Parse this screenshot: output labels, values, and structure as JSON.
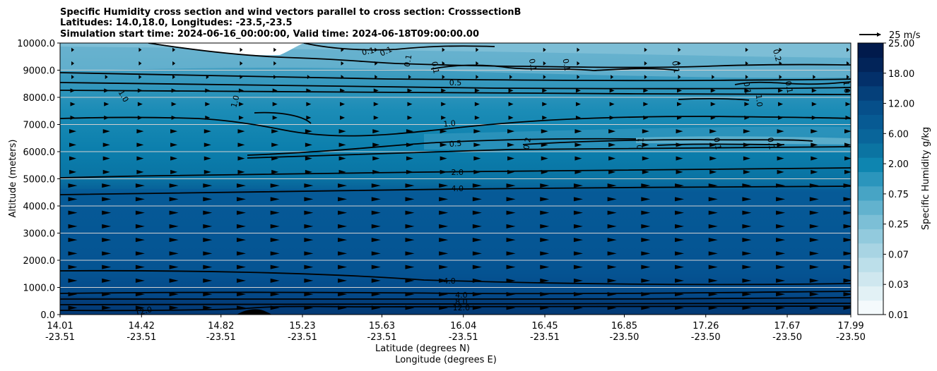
{
  "chart_data": {
    "type": "contour-cross-section",
    "title_lines": [
      "Specific Humidity cross section and wind vectors parallel to cross section: CrosssectionB",
      "Latitudes: 14.0,18.0, Longitudes: -23.5,-23.5",
      "Simulation start time: 2024-06-16_00:00:00, Valid time: 2024-06-18T09:00:00.00"
    ],
    "ylabel": "Altitude (meters)",
    "xlabel_lat": "Latitude (degrees N)",
    "xlabel_lon": "Longitude (degrees E)",
    "ylim": [
      0,
      10000
    ],
    "y_ticks": [
      "0.0",
      "1000.0",
      "2000.0",
      "3000.0",
      "4000.0",
      "5000.0",
      "6000.0",
      "7000.0",
      "8000.0",
      "9000.0",
      "10000.0"
    ],
    "y_tick_values": [
      0,
      1000,
      2000,
      3000,
      4000,
      5000,
      6000,
      7000,
      8000,
      9000,
      10000
    ],
    "x_range": [
      14.01,
      17.99
    ],
    "x_ticks": [
      {
        "lat": "14.01",
        "lon": "-23.51",
        "pos": 14.01
      },
      {
        "lat": "14.42",
        "lon": "-23.51",
        "pos": 14.42
      },
      {
        "lat": "14.82",
        "lon": "-23.51",
        "pos": 14.82
      },
      {
        "lat": "15.23",
        "lon": "-23.51",
        "pos": 15.23
      },
      {
        "lat": "15.63",
        "lon": "-23.51",
        "pos": 15.63
      },
      {
        "lat": "16.04",
        "lon": "-23.51",
        "pos": 16.04
      },
      {
        "lat": "16.45",
        "lon": "-23.51",
        "pos": 16.45
      },
      {
        "lat": "16.85",
        "lon": "-23.50",
        "pos": 16.85
      },
      {
        "lat": "17.26",
        "lon": "-23.50",
        "pos": 17.26
      },
      {
        "lat": "17.67",
        "lon": "-23.50",
        "pos": 17.67
      },
      {
        "lat": "17.99",
        "lon": "-23.50",
        "pos": 17.99
      }
    ],
    "colorbar": {
      "label": "Specific Humidity g/kg",
      "tick_labels": [
        "0.01",
        "0.03",
        "0.07",
        "0.25",
        "0.75",
        "2.00",
        "6.00",
        "12.00",
        "18.00",
        "25.00"
      ],
      "levels": [
        "0.01",
        "0.02",
        "0.03",
        "0.05",
        "0.07",
        "0.10",
        "0.25",
        "0.50",
        "0.75",
        "1.00",
        "2.00",
        "4.00",
        "6.00",
        "8.00",
        "12.00",
        "15.00",
        "18.00",
        "20.00",
        "25.00"
      ],
      "colors": [
        "#f4fafc",
        "#e2f1f5",
        "#cfe7ef",
        "#bcdfea",
        "#a8d4e3",
        "#92cadd",
        "#7cbfd6",
        "#62b2ce",
        "#47a4c5",
        "#2b95bc",
        "#0e85b0",
        "#0b74a2",
        "#09659a",
        "#075a93",
        "#064f8a",
        "#05407a",
        "#03306a",
        "#022459",
        "#011a4c"
      ]
    },
    "quiver_key": {
      "label": "25 m/s",
      "speed": 25
    },
    "contour_labels": [
      {
        "text": "0.1",
        "lat": 15.56,
        "alt": 9700,
        "angle": -12
      },
      {
        "text": "0.1",
        "lat": 15.65,
        "alt": 9700,
        "angle": -25
      },
      {
        "text": "0.1",
        "lat": 15.76,
        "alt": 9350,
        "angle": -80
      },
      {
        "text": "0.1",
        "lat": 15.9,
        "alt": 9100,
        "angle": 80
      },
      {
        "text": "0.5",
        "lat": 16.0,
        "alt": 8550,
        "angle": 0
      },
      {
        "text": "0.1",
        "lat": 16.39,
        "alt": 9200,
        "angle": 80
      },
      {
        "text": "0.1",
        "lat": 16.56,
        "alt": 9200,
        "angle": 80
      },
      {
        "text": "0.1",
        "lat": 17.11,
        "alt": 9120,
        "angle": 80
      },
      {
        "text": "0.2",
        "lat": 17.62,
        "alt": 9550,
        "angle": 75
      },
      {
        "text": "0.1",
        "lat": 17.47,
        "alt": 8350,
        "angle": 80
      },
      {
        "text": "0.1",
        "lat": 17.68,
        "alt": 8380,
        "angle": 80
      },
      {
        "text": "1.0",
        "lat": 17.97,
        "alt": 8380,
        "angle": 85
      },
      {
        "text": "1.0",
        "lat": 17.53,
        "alt": 7880,
        "angle": 85
      },
      {
        "text": "1.0",
        "lat": 14.33,
        "alt": 8050,
        "angle": 60
      },
      {
        "text": "1.0",
        "lat": 14.89,
        "alt": 7850,
        "angle": -75
      },
      {
        "text": "1.0",
        "lat": 15.97,
        "alt": 7040,
        "angle": -5
      },
      {
        "text": "0.5",
        "lat": 16.0,
        "alt": 6300,
        "angle": -5
      },
      {
        "text": "0.2",
        "lat": 16.36,
        "alt": 6300,
        "angle": -80
      },
      {
        "text": "0.1",
        "lat": 16.93,
        "alt": 6300,
        "angle": -85
      },
      {
        "text": "0.1",
        "lat": 17.32,
        "alt": 6300,
        "angle": 80
      },
      {
        "text": "0.1",
        "lat": 17.59,
        "alt": 6300,
        "angle": 80
      },
      {
        "text": "2.0",
        "lat": 16.01,
        "alt": 5250,
        "angle": 0
      },
      {
        "text": "4.0",
        "lat": 16.01,
        "alt": 4650,
        "angle": 0
      },
      {
        "text": "4.0",
        "lat": 15.97,
        "alt": 1250,
        "angle": 0
      },
      {
        "text": "4.0",
        "lat": 16.03,
        "alt": 730,
        "angle": 0
      },
      {
        "text": "8.0",
        "lat": 16.03,
        "alt": 480,
        "angle": 0
      },
      {
        "text": "12.0",
        "lat": 16.03,
        "alt": 260,
        "angle": 0
      },
      {
        "text": "12.0",
        "lat": 14.43,
        "alt": 130,
        "angle": -15
      }
    ]
  }
}
